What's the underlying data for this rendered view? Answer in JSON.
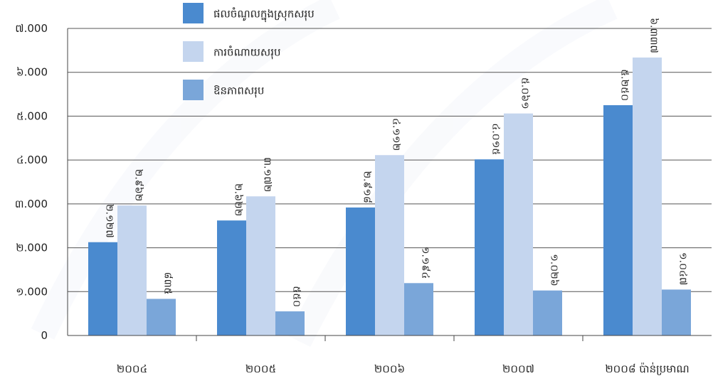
{
  "chart_data": {
    "type": "bar",
    "categories": [
      "២០០៤",
      "២០០៥",
      "២០០៦",
      "២០០៧",
      "២០០៨ ប៉ាន់ប្រមាណ"
    ],
    "series": [
      {
        "name": "ផលចំណូលក្នុងស្រុកសរុប",
        "values": [
          2127,
          2622,
          2918,
          4015,
          5250
        ],
        "labels": [
          "២.១២៧",
          "២.៦២២",
          "២.៩១៨",
          "៤.០១៥",
          "៥.២៥០"
        ],
        "color": "#4a8acf"
      },
      {
        "name": "ការចំណាយសរុប",
        "values": [
          2962,
          3172,
          4112,
          5061,
          6337
        ],
        "labels": [
          "២.៩៦២",
          "៣.១៧២",
          "៤.១១២",
          "៥.០៦១",
          "៦.៣៣៧"
        ],
        "color": "#c4d5ee"
      },
      {
        "name": "ឱនភាពសរុប",
        "values": [
          835,
          550,
          1194,
          1026,
          1047
        ],
        "labels": [
          "៨៣៥",
          "៥៥០",
          "១.១៩៤",
          "១.០២៦",
          "១.០៤៧"
        ],
        "color": "#7aa6d9"
      }
    ],
    "ylim": [
      0,
      7000
    ],
    "yticks": [
      0,
      1000,
      2000,
      3000,
      4000,
      5000,
      6000,
      7000
    ],
    "ytick_labels": [
      "0",
      "១.000",
      "២.000",
      "៣.000",
      "៤.000",
      "៥.000",
      "៦.000",
      "៧.000"
    ],
    "grid": true,
    "legend_position": "top-center"
  }
}
